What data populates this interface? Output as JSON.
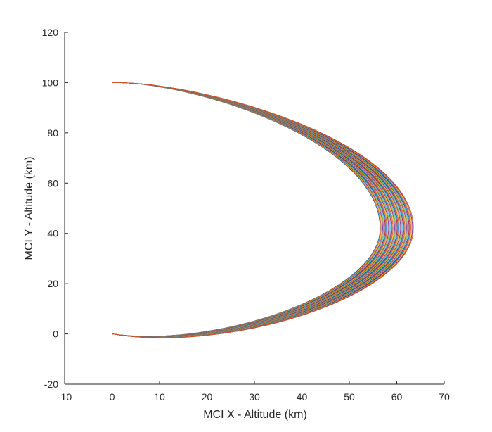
{
  "chart_data": {
    "type": "line",
    "title": "",
    "xlabel": "MCI X - Altitude (km)",
    "ylabel": "MCI Y - Altitude (km)",
    "xlim": [
      -10,
      70
    ],
    "ylim": [
      -20,
      120
    ],
    "x_ticks": [
      "-10",
      "0",
      "10",
      "20",
      "30",
      "40",
      "50",
      "60",
      "70"
    ],
    "y_ticks": [
      "-20",
      "0",
      "20",
      "40",
      "60",
      "80",
      "100",
      "120"
    ],
    "grid": false,
    "legend": "none",
    "series_count": 40,
    "trajectory": {
      "start": [
        0,
        100
      ],
      "end": [
        0,
        0
      ],
      "rightmost_x_range": [
        56.5,
        63.5
      ],
      "rightmost_y": 42,
      "min_y_range": [
        -5.5,
        -7.5
      ]
    },
    "series_colors": [
      "#0072BD",
      "#D95319",
      "#EDB120",
      "#7E2F8E",
      "#77AC30",
      "#4DBEEE",
      "#A2142F"
    ]
  }
}
